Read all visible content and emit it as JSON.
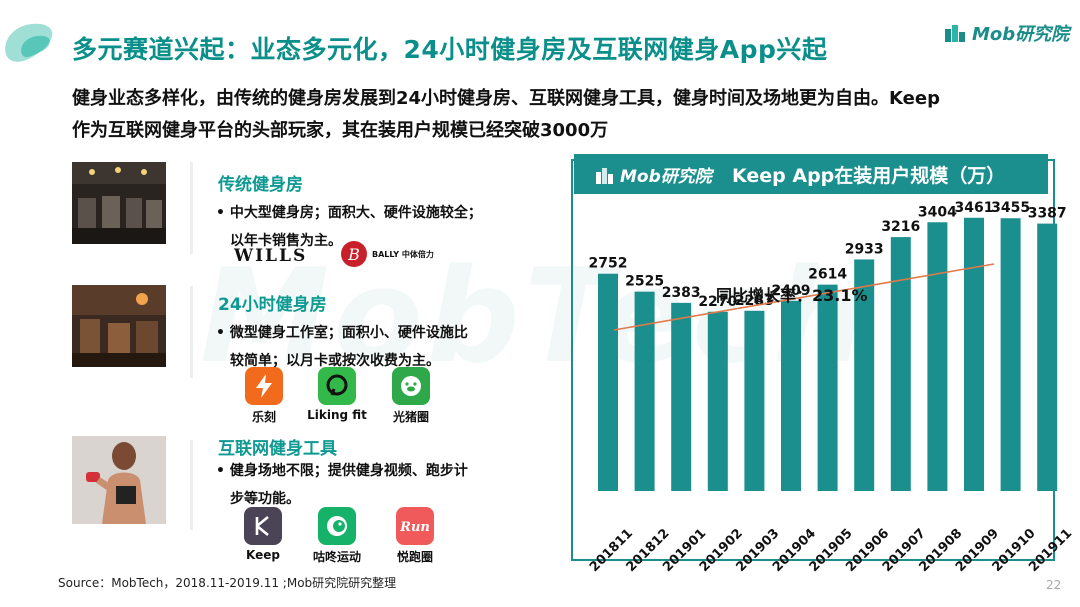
{
  "header": {
    "title": "多元赛道兴起：业态多元化，24小时健身房及互联网健身App兴起",
    "brand": "Mob研究院"
  },
  "subtitle": {
    "line1": "健身业态多样化，由传统的健身房发展到24小时健身房、互联网健身工具，健身时间及场地更为自由。Keep",
    "line2": "作为互联网健身平台的头部玩家，其在装用户规模已经突破3000万"
  },
  "watermark": "MobTech",
  "sections": [
    {
      "title": "传统健身房",
      "lines": [
        "• 中大型健身房；面积大、硬件设施较全；",
        "以年卡销售为主。"
      ],
      "logos": [
        "WILLS",
        "BALLY 中体倍力"
      ]
    },
    {
      "title": "24小时健身房",
      "lines": [
        "• 微型健身工作室；面积小、硬件设施比",
        "较简单；以月卡或按次收费为主。"
      ],
      "apps": [
        "乐刻",
        "Liking fit",
        "光猪圈"
      ]
    },
    {
      "title": "互联网健身工具",
      "lines": [
        "• 健身场地不限；提供健身视频、跑步计",
        "步等功能。"
      ],
      "apps": [
        "Keep",
        "咕咚运动",
        "悦跑圈"
      ]
    }
  ],
  "chart_data": {
    "type": "bar",
    "title": "Keep App在装用户规模（万）",
    "brand": "Mob研究院",
    "categories": [
      "201811",
      "201812",
      "201901",
      "201902",
      "201903",
      "201904",
      "201905",
      "201906",
      "201907",
      "201908",
      "201909",
      "201910",
      "201911"
    ],
    "values": [
      2752,
      2525,
      2383,
      2270,
      2283,
      2409,
      2614,
      2933,
      3216,
      3404,
      3461,
      3455,
      3387
    ],
    "annotation": "同比增长率：23.1%",
    "ylim": [
      0,
      3800
    ],
    "grid": false,
    "colors": {
      "bar": "#1a8f8e",
      "title_bg": "#1a8f8e",
      "arrow": "#e07a4a"
    }
  },
  "footer": {
    "source": "Source：MobTech，2018.11-2019.11 ;Mob研究院研究整理",
    "page": "22"
  }
}
